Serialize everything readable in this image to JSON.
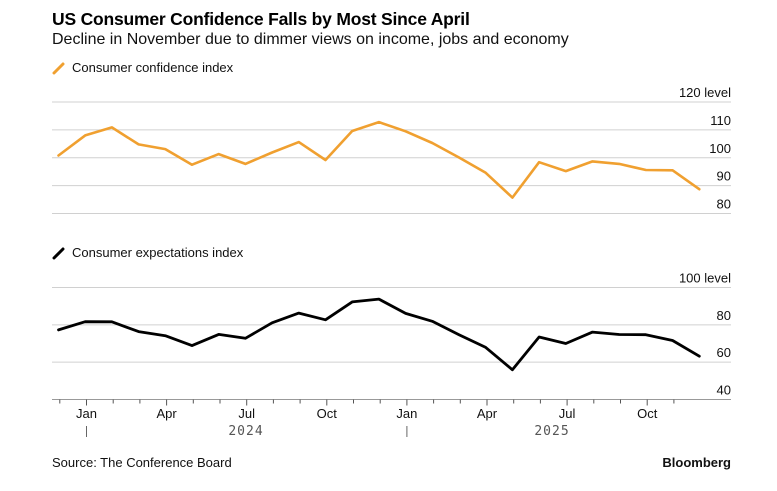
{
  "header": {
    "title": "US Consumer Confidence Falls by Most Since April",
    "subtitle": "Decline in November due to dimmer views on income, jobs and economy"
  },
  "footer": {
    "source": "Source: The Conference Board",
    "brand": "Bloomberg"
  },
  "colors": {
    "confidence": "#f0a030",
    "expectations": "#000000",
    "grid": "#d0d0d0",
    "axis": "#999999"
  },
  "chart_data": [
    {
      "type": "line",
      "title": "Consumer confidence index",
      "legend": "top-left",
      "ylabel": "level",
      "ylim": [
        80,
        120
      ],
      "yticks": [
        80,
        90,
        100,
        110,
        120
      ],
      "ytick_labels": [
        "80",
        "90",
        "100",
        "110",
        "120 level"
      ],
      "grid": true,
      "x": [
        "Nov 2023",
        "Dec 2023",
        "Jan 2024",
        "Feb 2024",
        "Mar 2024",
        "Apr 2024",
        "May 2024",
        "Jun 2024",
        "Jul 2024",
        "Aug 2024",
        "Sep 2024",
        "Oct 2024",
        "Nov 2024",
        "Dec 2024",
        "Jan 2025",
        "Feb 2025",
        "Mar 2025",
        "Apr 2025",
        "May 2025",
        "Jun 2025",
        "Jul 2025",
        "Aug 2025",
        "Sep 2025",
        "Oct 2025",
        "Nov 2025"
      ],
      "series": [
        {
          "name": "Consumer confidence index",
          "values": [
            100.8,
            108.0,
            110.9,
            104.8,
            103.1,
            97.5,
            101.3,
            97.8,
            101.9,
            105.6,
            99.2,
            109.6,
            112.8,
            109.5,
            105.3,
            100.1,
            94.6,
            85.7,
            98.4,
            95.2,
            98.7,
            97.8,
            95.6,
            95.5,
            88.7
          ]
        }
      ]
    },
    {
      "type": "line",
      "title": "Consumer expectations index",
      "legend": "top-left",
      "ylabel": "level",
      "ylim": [
        40,
        100
      ],
      "yticks": [
        40,
        60,
        80,
        100
      ],
      "ytick_labels": [
        "40",
        "60",
        "80",
        "100 level"
      ],
      "grid": true,
      "x": [
        "Nov 2023",
        "Dec 2023",
        "Jan 2024",
        "Feb 2024",
        "Mar 2024",
        "Apr 2024",
        "May 2024",
        "Jun 2024",
        "Jul 2024",
        "Aug 2024",
        "Sep 2024",
        "Oct 2024",
        "Nov 2024",
        "Dec 2024",
        "Jan 2025",
        "Feb 2025",
        "Mar 2025",
        "Apr 2025",
        "May 2025",
        "Jun 2025",
        "Jul 2025",
        "Aug 2025",
        "Sep 2025",
        "Oct 2025",
        "Nov 2025"
      ],
      "series": [
        {
          "name": "Consumer expectations index",
          "values": [
            77.3,
            81.7,
            81.6,
            76.4,
            74.2,
            68.9,
            74.9,
            72.8,
            81.1,
            86.3,
            82.7,
            92.3,
            93.8,
            86.1,
            81.9,
            74.7,
            67.9,
            55.9,
            73.5,
            70.0,
            76.1,
            74.8,
            74.7,
            71.6,
            63.2
          ]
        }
      ]
    }
  ],
  "xaxis": {
    "month_labels": [
      "Jan",
      "Apr",
      "Jul",
      "Oct",
      "Jan",
      "Apr",
      "Jul",
      "Oct"
    ],
    "years": [
      "2024",
      "2025"
    ]
  }
}
